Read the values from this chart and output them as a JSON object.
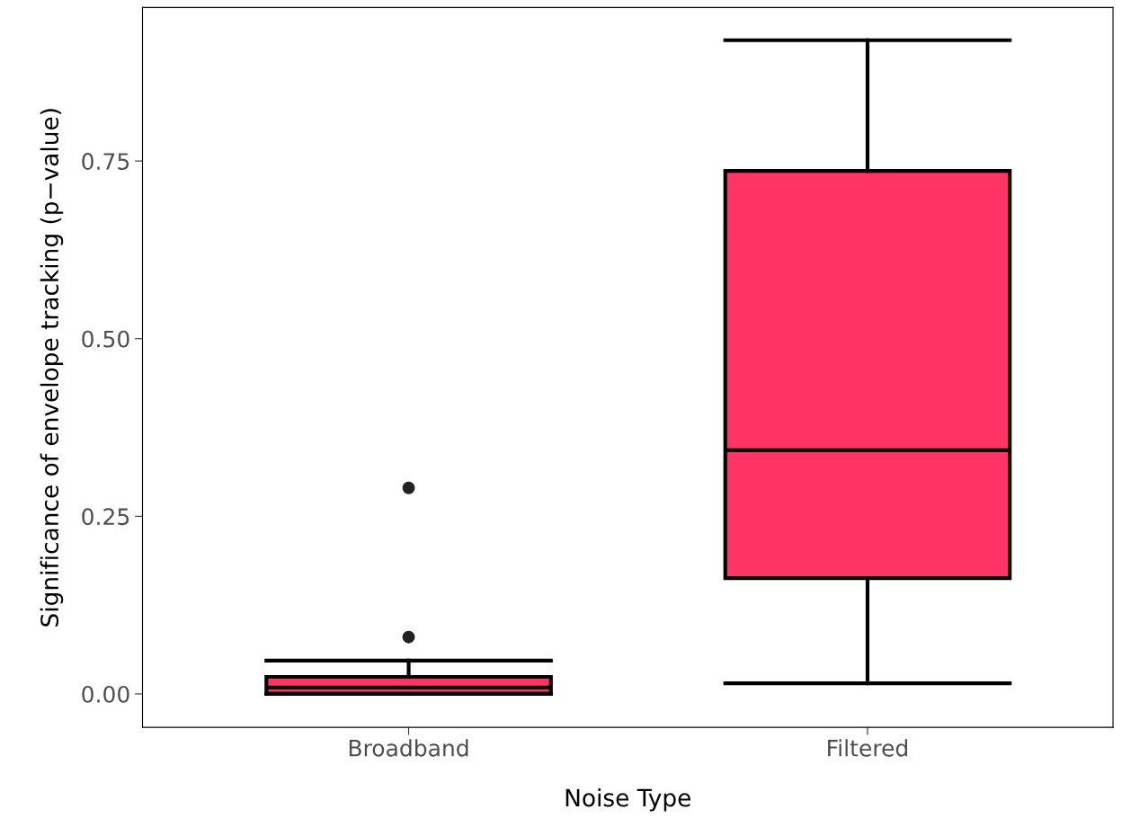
{
  "chart_data": {
    "type": "box",
    "xlabel": "Noise Type",
    "ylabel": "Significance of envelope tracking (p−value)",
    "categories": [
      "Broadband",
      "Filtered"
    ],
    "series": [
      {
        "color": "#ff3366",
        "boxes": [
          {
            "low": 0.0,
            "q1": 0.0,
            "median": 0.009,
            "q3": 0.024,
            "high": 0.047,
            "outliers": [
              0.08,
              0.29
            ]
          },
          {
            "low": 0.015,
            "q1": 0.163,
            "median": 0.343,
            "q3": 0.736,
            "high": 0.92
          }
        ]
      }
    ],
    "ylim": [
      -0.047,
      0.966
    ],
    "yticks": [
      {
        "value": 0,
        "label": "0.00"
      },
      {
        "value": 0.25,
        "label": "0.25"
      },
      {
        "value": 0.5,
        "label": "0.50"
      },
      {
        "value": 0.75,
        "label": "0.75"
      }
    ],
    "grid": false
  }
}
